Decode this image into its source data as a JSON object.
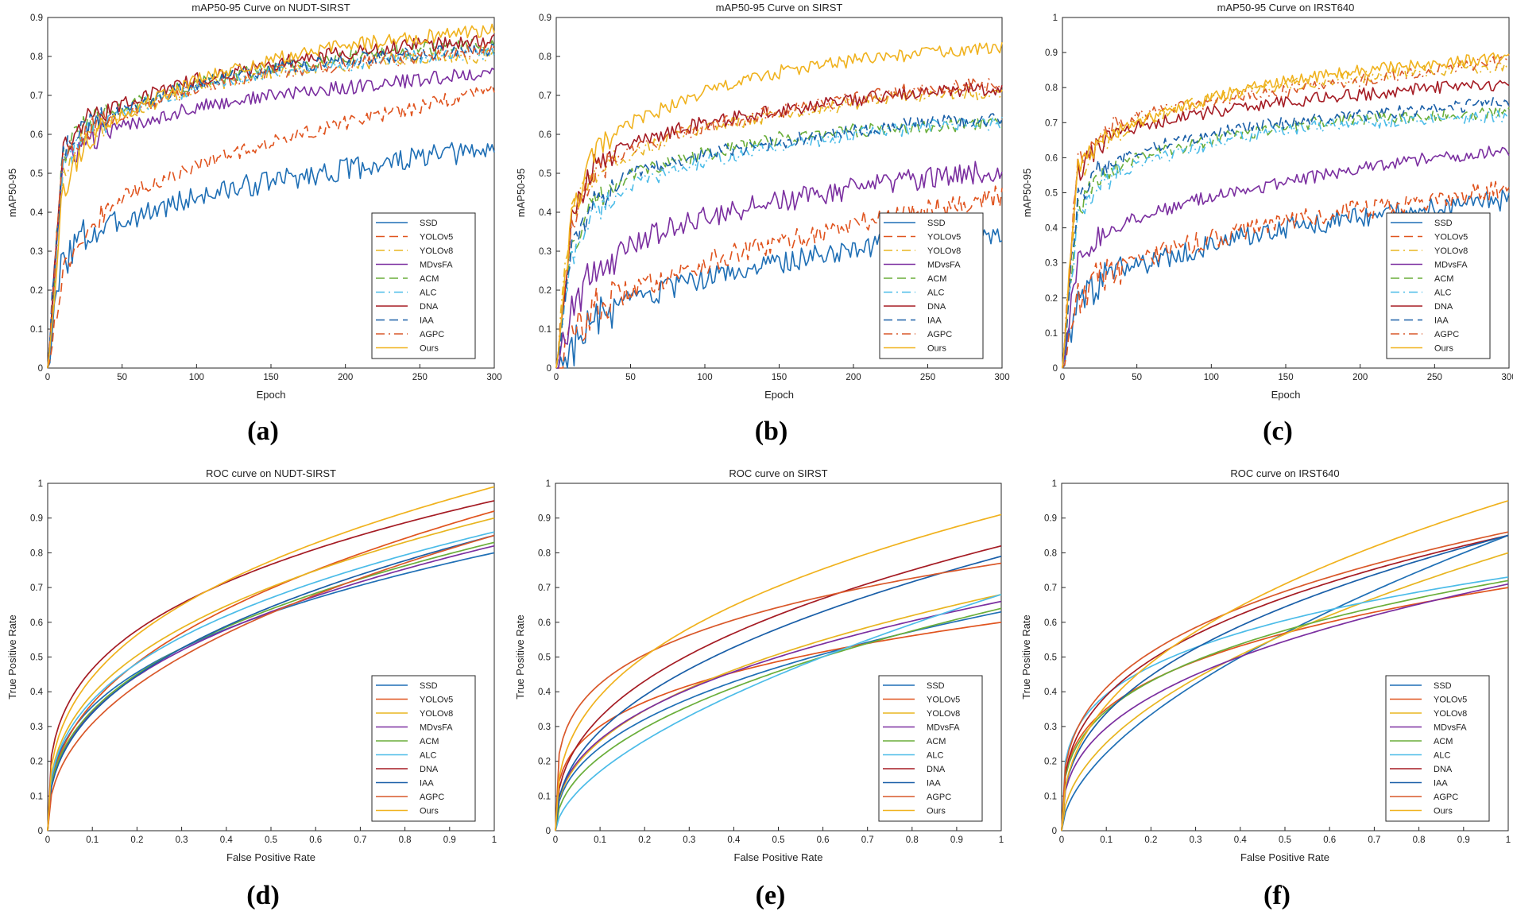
{
  "colors": {
    "SSD": "#1f6fb5",
    "YOLOv5": "#e0541f",
    "YOLOv8": "#e8b520",
    "MDvsFA": "#7b2fa0",
    "ACM": "#6aae3a",
    "ALC": "#4cbce8",
    "DNA": "#a51c24",
    "IAA": "#1a5fa8",
    "AGPC": "#d9582a",
    "Ours": "#f0b21e"
  },
  "legend_entries": [
    "SSD",
    "YOLOv5",
    "YOLOv8",
    "MDvsFA",
    "ACM",
    "ALC",
    "DNA",
    "IAA",
    "AGPC",
    "Ours"
  ],
  "chart_data": [
    {
      "type": "line",
      "title": "mAP50-95 Curve on NUDT-SIRST",
      "label": "(a)",
      "xlabel": "Epoch",
      "ylabel": "mAP50-95",
      "xlim": [
        0,
        300
      ],
      "ylim": [
        0,
        0.9
      ],
      "xticks": [
        "0",
        "50",
        "100",
        "150",
        "200",
        "250",
        "300"
      ],
      "yticks": [
        "0",
        "0.1",
        "0.2",
        "0.3",
        "0.4",
        "0.5",
        "0.6",
        "0.7",
        "0.8",
        "0.9"
      ],
      "legend_position": "lower-right",
      "x": [
        0,
        10,
        25,
        50,
        100,
        150,
        200,
        250,
        300
      ],
      "series": [
        {
          "name": "SSD",
          "style": "solid",
          "values": [
            0,
            0.28,
            0.34,
            0.38,
            0.44,
            0.48,
            0.51,
            0.54,
            0.56
          ]
        },
        {
          "name": "YOLOv5",
          "style": "dashed",
          "values": [
            0,
            0.25,
            0.35,
            0.44,
            0.52,
            0.58,
            0.63,
            0.67,
            0.72
          ]
        },
        {
          "name": "YOLOv8",
          "style": "dashdot",
          "values": [
            0,
            0.5,
            0.6,
            0.65,
            0.72,
            0.76,
            0.78,
            0.8,
            0.8
          ]
        },
        {
          "name": "MDvsFA",
          "style": "solid",
          "values": [
            0,
            0.52,
            0.58,
            0.62,
            0.67,
            0.7,
            0.72,
            0.74,
            0.76
          ]
        },
        {
          "name": "ACM",
          "style": "dashed",
          "values": [
            0,
            0.55,
            0.62,
            0.67,
            0.73,
            0.77,
            0.8,
            0.82,
            0.83
          ]
        },
        {
          "name": "ALC",
          "style": "dashdot",
          "values": [
            0,
            0.52,
            0.6,
            0.66,
            0.72,
            0.76,
            0.78,
            0.8,
            0.81
          ]
        },
        {
          "name": "DNA",
          "style": "solid",
          "values": [
            0,
            0.56,
            0.63,
            0.68,
            0.74,
            0.78,
            0.81,
            0.83,
            0.84
          ]
        },
        {
          "name": "IAA",
          "style": "dashed",
          "values": [
            0,
            0.55,
            0.62,
            0.66,
            0.73,
            0.77,
            0.79,
            0.81,
            0.82
          ]
        },
        {
          "name": "AGPC",
          "style": "dashdot",
          "values": [
            0,
            0.53,
            0.61,
            0.65,
            0.72,
            0.76,
            0.78,
            0.8,
            0.82
          ]
        },
        {
          "name": "Ours",
          "style": "solid",
          "values": [
            0,
            0.45,
            0.58,
            0.65,
            0.74,
            0.79,
            0.83,
            0.85,
            0.87
          ]
        }
      ]
    },
    {
      "type": "line",
      "title": "mAP50-95 Curve on SIRST",
      "label": "(b)",
      "xlabel": "Epoch",
      "ylabel": "mAP50-95",
      "xlim": [
        0,
        300
      ],
      "ylim": [
        0,
        0.9
      ],
      "xticks": [
        "0",
        "50",
        "100",
        "150",
        "200",
        "250",
        "300"
      ],
      "yticks": [
        "0",
        "0.1",
        "0.2",
        "0.3",
        "0.4",
        "0.5",
        "0.6",
        "0.7",
        "0.8",
        "0.9"
      ],
      "legend_position": "lower-right",
      "x": [
        0,
        10,
        25,
        50,
        100,
        150,
        200,
        250,
        300
      ],
      "series": [
        {
          "name": "SSD",
          "style": "solid",
          "values": [
            0,
            0.05,
            0.12,
            0.17,
            0.23,
            0.27,
            0.31,
            0.33,
            0.35
          ]
        },
        {
          "name": "YOLOv5",
          "style": "dashed",
          "values": [
            0,
            0.08,
            0.15,
            0.2,
            0.27,
            0.32,
            0.37,
            0.41,
            0.44
          ]
        },
        {
          "name": "YOLOv8",
          "style": "dashdot",
          "values": [
            0,
            0.4,
            0.5,
            0.55,
            0.62,
            0.65,
            0.68,
            0.7,
            0.71
          ]
        },
        {
          "name": "MDvsFA",
          "style": "solid",
          "values": [
            0,
            0.15,
            0.25,
            0.32,
            0.39,
            0.43,
            0.46,
            0.49,
            0.51
          ]
        },
        {
          "name": "ACM",
          "style": "dashed",
          "values": [
            0,
            0.3,
            0.43,
            0.5,
            0.55,
            0.59,
            0.61,
            0.62,
            0.63
          ]
        },
        {
          "name": "ALC",
          "style": "dashdot",
          "values": [
            0,
            0.28,
            0.4,
            0.47,
            0.53,
            0.57,
            0.6,
            0.62,
            0.63
          ]
        },
        {
          "name": "DNA",
          "style": "solid",
          "values": [
            0,
            0.38,
            0.52,
            0.58,
            0.63,
            0.66,
            0.69,
            0.71,
            0.72
          ]
        },
        {
          "name": "IAA",
          "style": "dashed",
          "values": [
            0,
            0.3,
            0.42,
            0.5,
            0.55,
            0.58,
            0.61,
            0.63,
            0.64
          ]
        },
        {
          "name": "AGPC",
          "style": "dashdot",
          "values": [
            0,
            0.35,
            0.5,
            0.56,
            0.62,
            0.66,
            0.69,
            0.72,
            0.73
          ]
        },
        {
          "name": "Ours",
          "style": "solid",
          "values": [
            0,
            0.38,
            0.55,
            0.63,
            0.71,
            0.76,
            0.79,
            0.81,
            0.82
          ]
        }
      ]
    },
    {
      "type": "line",
      "title": "mAP50-95 Curve on IRST640",
      "label": "(c)",
      "xlabel": "Epoch",
      "ylabel": "mAP50-95",
      "xlim": [
        0,
        300
      ],
      "ylim": [
        0,
        1
      ],
      "xticks": [
        "0",
        "50",
        "100",
        "150",
        "200",
        "250",
        "300"
      ],
      "yticks": [
        "0",
        "0.1",
        "0.2",
        "0.3",
        "0.4",
        "0.5",
        "0.6",
        "0.7",
        "0.8",
        "0.9",
        "1"
      ],
      "legend_position": "lower-right",
      "x": [
        0,
        10,
        25,
        50,
        100,
        150,
        200,
        250,
        300
      ],
      "series": [
        {
          "name": "SSD",
          "style": "solid",
          "values": [
            0,
            0.18,
            0.24,
            0.29,
            0.35,
            0.4,
            0.43,
            0.46,
            0.48
          ]
        },
        {
          "name": "YOLOv5",
          "style": "dashed",
          "values": [
            0,
            0.2,
            0.26,
            0.31,
            0.37,
            0.42,
            0.45,
            0.48,
            0.51
          ]
        },
        {
          "name": "YOLOv8",
          "style": "dashdot",
          "values": [
            0,
            0.55,
            0.64,
            0.7,
            0.77,
            0.81,
            0.83,
            0.85,
            0.86
          ]
        },
        {
          "name": "MDvsFA",
          "style": "solid",
          "values": [
            0,
            0.3,
            0.38,
            0.43,
            0.49,
            0.53,
            0.57,
            0.6,
            0.62
          ]
        },
        {
          "name": "ACM",
          "style": "dashed",
          "values": [
            0,
            0.45,
            0.55,
            0.6,
            0.65,
            0.69,
            0.71,
            0.72,
            0.73
          ]
        },
        {
          "name": "ALC",
          "style": "dashdot",
          "values": [
            0,
            0.42,
            0.53,
            0.58,
            0.64,
            0.68,
            0.7,
            0.71,
            0.72
          ]
        },
        {
          "name": "DNA",
          "style": "solid",
          "values": [
            0,
            0.55,
            0.64,
            0.69,
            0.73,
            0.76,
            0.78,
            0.8,
            0.81
          ]
        },
        {
          "name": "IAA",
          "style": "dashed",
          "values": [
            0,
            0.48,
            0.57,
            0.62,
            0.67,
            0.7,
            0.72,
            0.74,
            0.76
          ]
        },
        {
          "name": "AGPC",
          "style": "dashdot",
          "values": [
            0,
            0.58,
            0.67,
            0.72,
            0.76,
            0.79,
            0.82,
            0.85,
            0.88
          ]
        },
        {
          "name": "Ours",
          "style": "solid",
          "values": [
            0,
            0.56,
            0.65,
            0.7,
            0.77,
            0.82,
            0.85,
            0.87,
            0.89
          ]
        }
      ]
    },
    {
      "type": "line",
      "title": "ROC curve on NUDT-SIRST",
      "label": "(d)",
      "xlabel": "False Positive Rate",
      "ylabel": "True Positive Rate",
      "xlim": [
        0,
        1
      ],
      "ylim": [
        0,
        1
      ],
      "xticks": [
        "0",
        "0.1",
        "0.2",
        "0.3",
        "0.4",
        "0.5",
        "0.6",
        "0.7",
        "0.8",
        "0.9",
        "1"
      ],
      "yticks": [
        "0",
        "0.1",
        "0.2",
        "0.3",
        "0.4",
        "0.5",
        "0.6",
        "0.7",
        "0.8",
        "0.9",
        "1"
      ],
      "legend_position": "lower-right",
      "series": [
        {
          "name": "SSD",
          "style": "solid",
          "exponent": 0.35,
          "end": 0.8
        },
        {
          "name": "YOLOv5",
          "style": "solid",
          "exponent": 0.4,
          "end": 0.92
        },
        {
          "name": "YOLOv8",
          "style": "solid",
          "exponent": 0.36,
          "end": 0.9
        },
        {
          "name": "MDvsFA",
          "style": "solid",
          "exponent": 0.38,
          "end": 0.82
        },
        {
          "name": "ACM",
          "style": "solid",
          "exponent": 0.38,
          "end": 0.83
        },
        {
          "name": "ALC",
          "style": "solid",
          "exponent": 0.36,
          "end": 0.86
        },
        {
          "name": "DNA",
          "style": "solid",
          "exponent": 0.31,
          "end": 0.95
        },
        {
          "name": "IAA",
          "style": "solid",
          "exponent": 0.4,
          "end": 0.85
        },
        {
          "name": "AGPC",
          "style": "solid",
          "exponent": 0.44,
          "end": 0.85
        },
        {
          "name": "Ours",
          "style": "solid",
          "exponent": 0.35,
          "end": 0.99
        }
      ]
    },
    {
      "type": "line",
      "title": "ROC curve on SIRST",
      "label": "(e)",
      "xlabel": "False Positive Rate",
      "ylabel": "True Positive Rate",
      "xlim": [
        0,
        1
      ],
      "ylim": [
        0,
        1
      ],
      "xticks": [
        "0",
        "0.1",
        "0.2",
        "0.3",
        "0.4",
        "0.5",
        "0.6",
        "0.7",
        "0.8",
        "0.9",
        "1"
      ],
      "yticks": [
        "0",
        "0.1",
        "0.2",
        "0.3",
        "0.4",
        "0.5",
        "0.6",
        "0.7",
        "0.8",
        "0.9",
        "1"
      ],
      "legend_position": "lower-right",
      "series": [
        {
          "name": "SSD",
          "style": "solid",
          "exponent": 0.42,
          "end": 0.63
        },
        {
          "name": "YOLOv5",
          "style": "solid",
          "exponent": 0.3,
          "end": 0.6
        },
        {
          "name": "YOLOv8",
          "style": "solid",
          "exponent": 0.42,
          "end": 0.68
        },
        {
          "name": "MDvsFA",
          "style": "solid",
          "exponent": 0.4,
          "end": 0.66
        },
        {
          "name": "ACM",
          "style": "solid",
          "exponent": 0.48,
          "end": 0.64
        },
        {
          "name": "ALC",
          "style": "solid",
          "exponent": 0.6,
          "end": 0.68
        },
        {
          "name": "DNA",
          "style": "solid",
          "exponent": 0.4,
          "end": 0.82
        },
        {
          "name": "IAA",
          "style": "solid",
          "exponent": 0.44,
          "end": 0.79
        },
        {
          "name": "AGPC",
          "style": "solid",
          "exponent": 0.26,
          "end": 0.77
        },
        {
          "name": "Ours",
          "style": "solid",
          "exponent": 0.37,
          "end": 0.91
        }
      ]
    },
    {
      "type": "line",
      "title": "ROC curve on IRST640",
      "label": "(f)",
      "xlabel": "False Positive Rate",
      "ylabel": "True Positive Rate",
      "xlim": [
        0,
        1
      ],
      "ylim": [
        0,
        1
      ],
      "xticks": [
        "0",
        "0.1",
        "0.2",
        "0.3",
        "0.4",
        "0.5",
        "0.6",
        "0.7",
        "0.8",
        "0.9",
        "1"
      ],
      "yticks": [
        "0",
        "0.1",
        "0.2",
        "0.3",
        "0.4",
        "0.5",
        "0.6",
        "0.7",
        "0.8",
        "0.9",
        "1"
      ],
      "legend_position": "lower-right",
      "series": [
        {
          "name": "SSD",
          "style": "solid",
          "exponent": 0.58,
          "end": 0.85
        },
        {
          "name": "YOLOv5",
          "style": "solid",
          "exponent": 0.3,
          "end": 0.7
        },
        {
          "name": "YOLOv8",
          "style": "solid",
          "exponent": 0.5,
          "end": 0.8
        },
        {
          "name": "MDvsFA",
          "style": "solid",
          "exponent": 0.38,
          "end": 0.71
        },
        {
          "name": "ACM",
          "style": "solid",
          "exponent": 0.32,
          "end": 0.72
        },
        {
          "name": "ALC",
          "style": "solid",
          "exponent": 0.27,
          "end": 0.73
        },
        {
          "name": "DNA",
          "style": "solid",
          "exponent": 0.34,
          "end": 0.85
        },
        {
          "name": "IAA",
          "style": "solid",
          "exponent": 0.4,
          "end": 0.85
        },
        {
          "name": "AGPC",
          "style": "solid",
          "exponent": 0.32,
          "end": 0.86
        },
        {
          "name": "Ours",
          "style": "solid",
          "exponent": 0.42,
          "end": 0.95
        }
      ]
    }
  ]
}
